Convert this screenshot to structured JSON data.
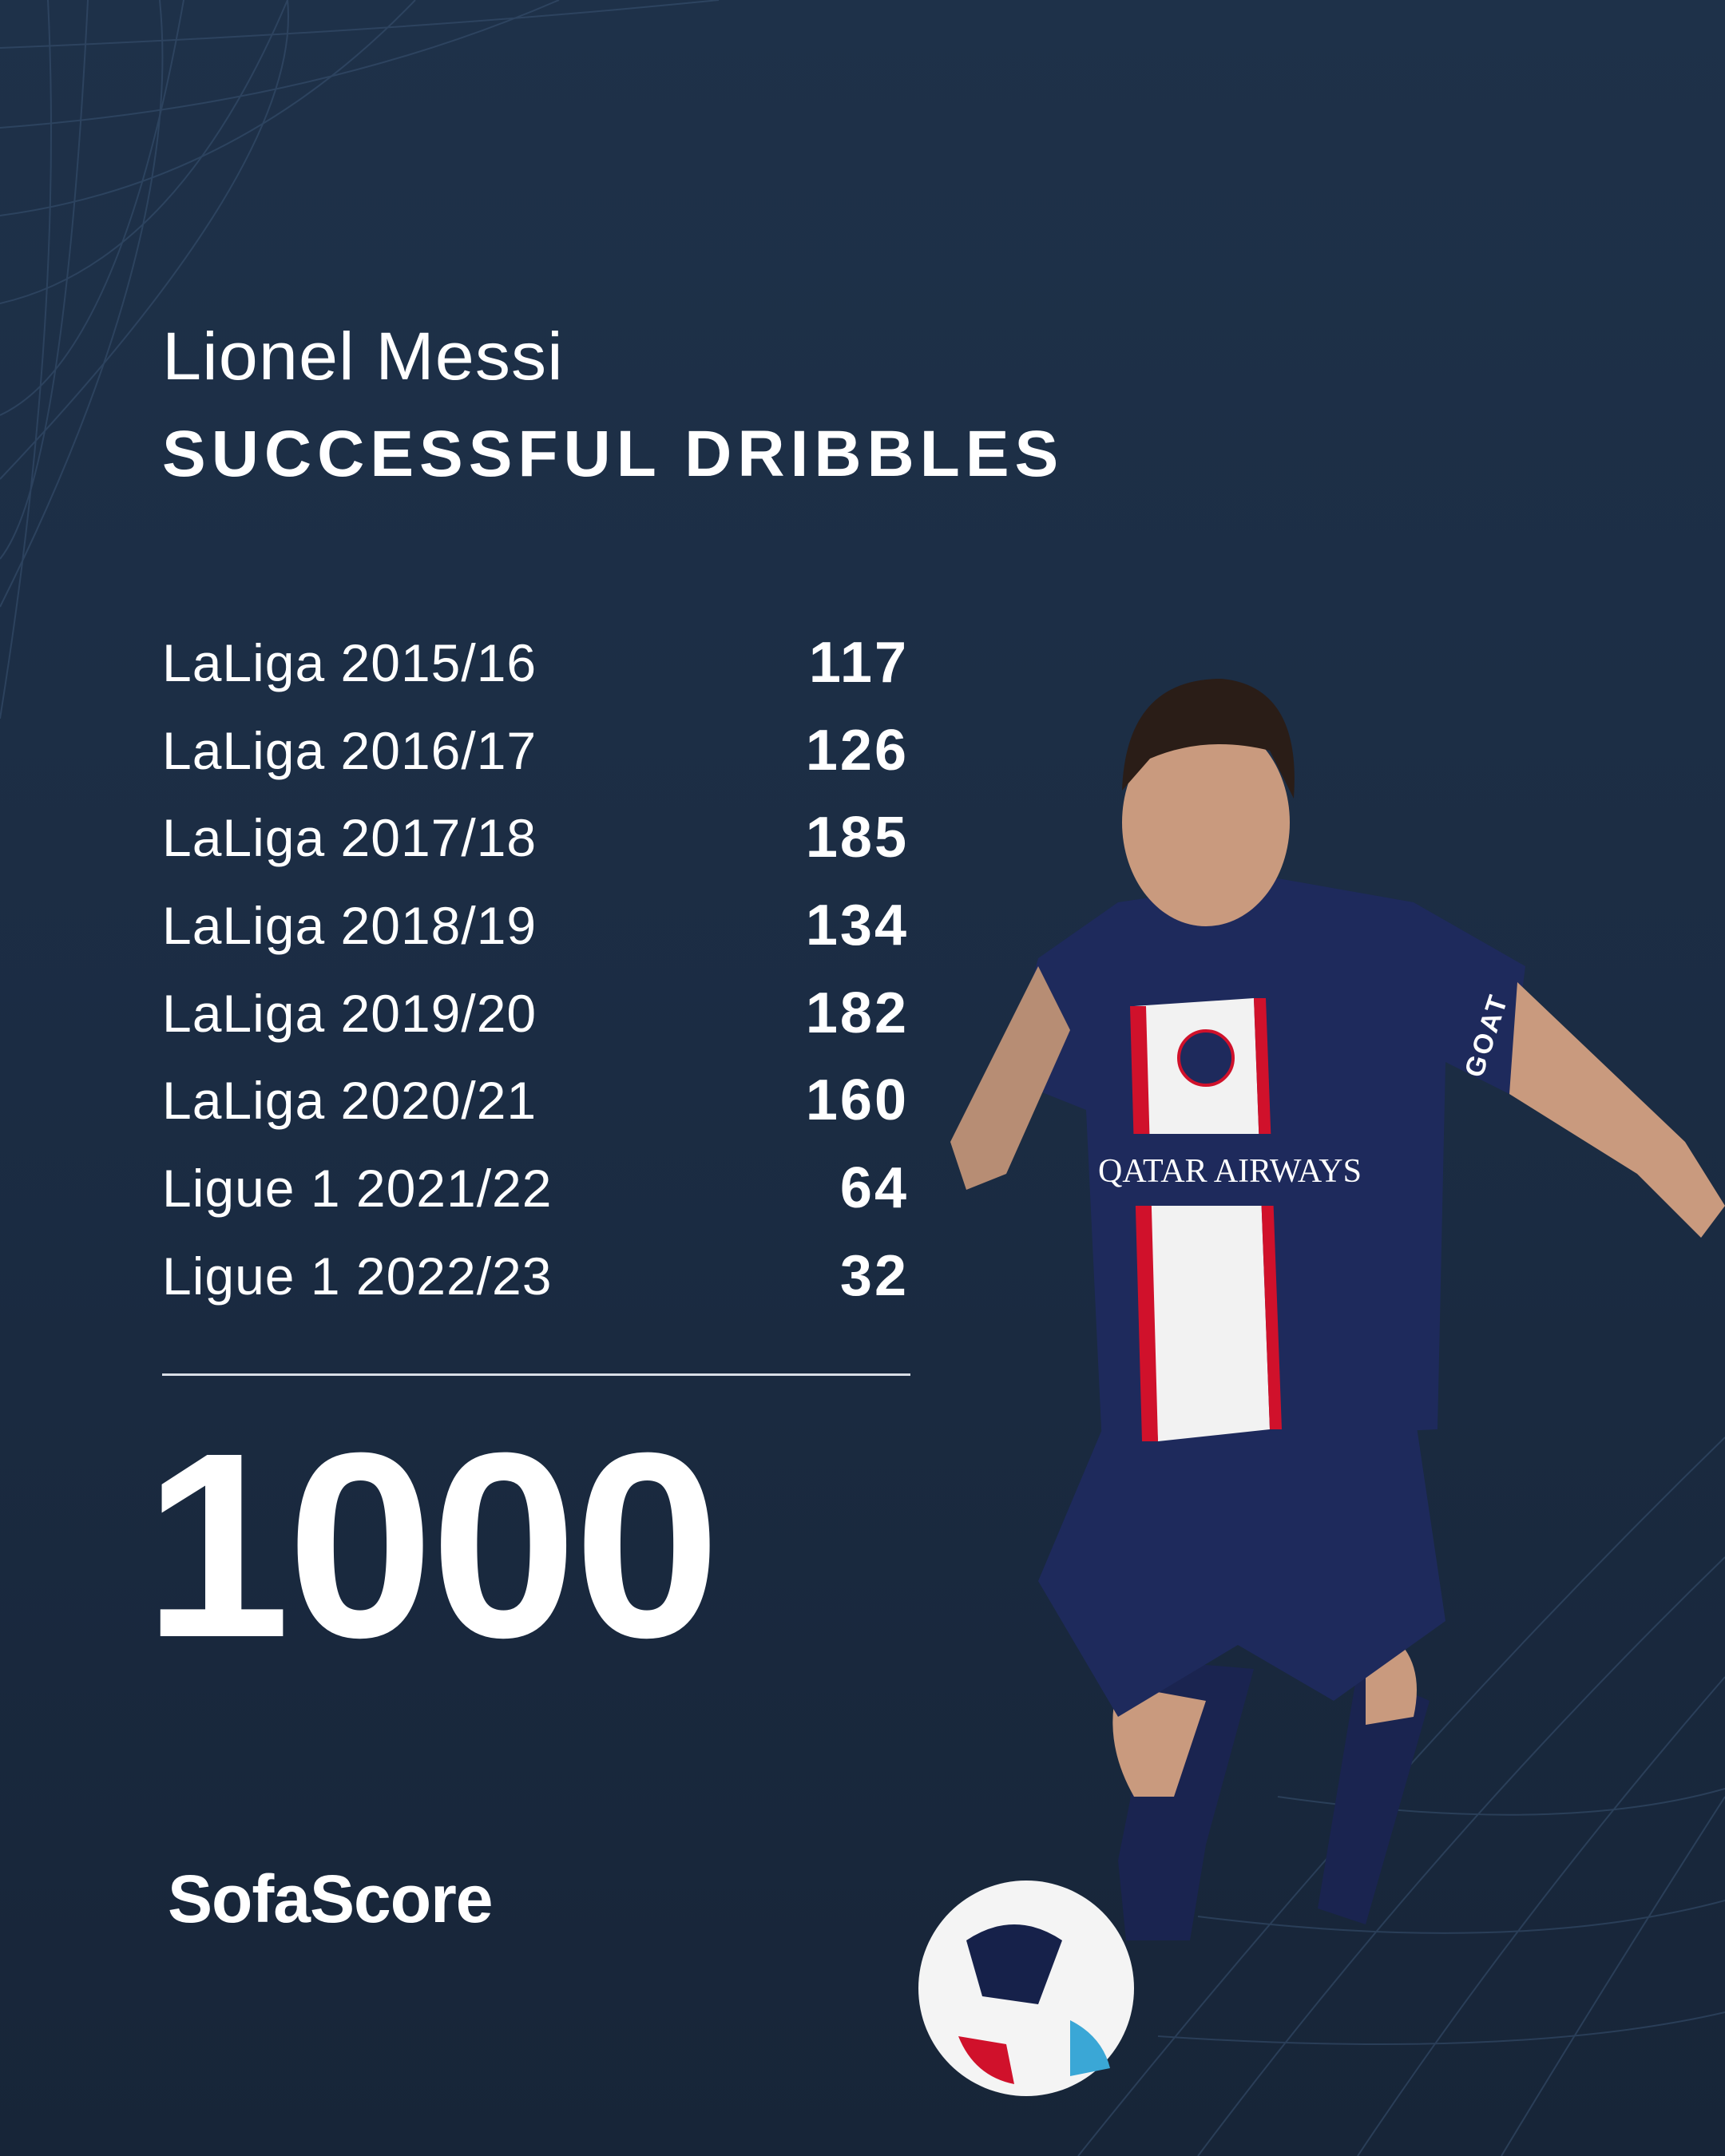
{
  "player_name": "Lionel Messi",
  "stat_title": "SUCCESSFUL DRIBBLES",
  "seasons": [
    {
      "label": "LaLiga 2015/16",
      "value": "117"
    },
    {
      "label": "LaLiga 2016/17",
      "value": "126"
    },
    {
      "label": "LaLiga 2017/18",
      "value": "185"
    },
    {
      "label": "LaLiga 2018/19",
      "value": "134"
    },
    {
      "label": "LaLiga 2019/20",
      "value": "182"
    },
    {
      "label": "LaLiga 2020/21",
      "value": "160"
    },
    {
      "label": "Ligue 1 2021/22",
      "value": "64"
    },
    {
      "label": "Ligue 1 2022/23",
      "value": "32"
    }
  ],
  "total": "1000",
  "brand": "SofaScore",
  "photo": {
    "shirt_sponsor": "QATAR AIRWAYS",
    "shirt_text": "GOAT"
  },
  "colors": {
    "background": "#1c2d44",
    "text": "#ffffff",
    "kit_navy": "#1e2a5c",
    "kit_red": "#d0112b"
  }
}
